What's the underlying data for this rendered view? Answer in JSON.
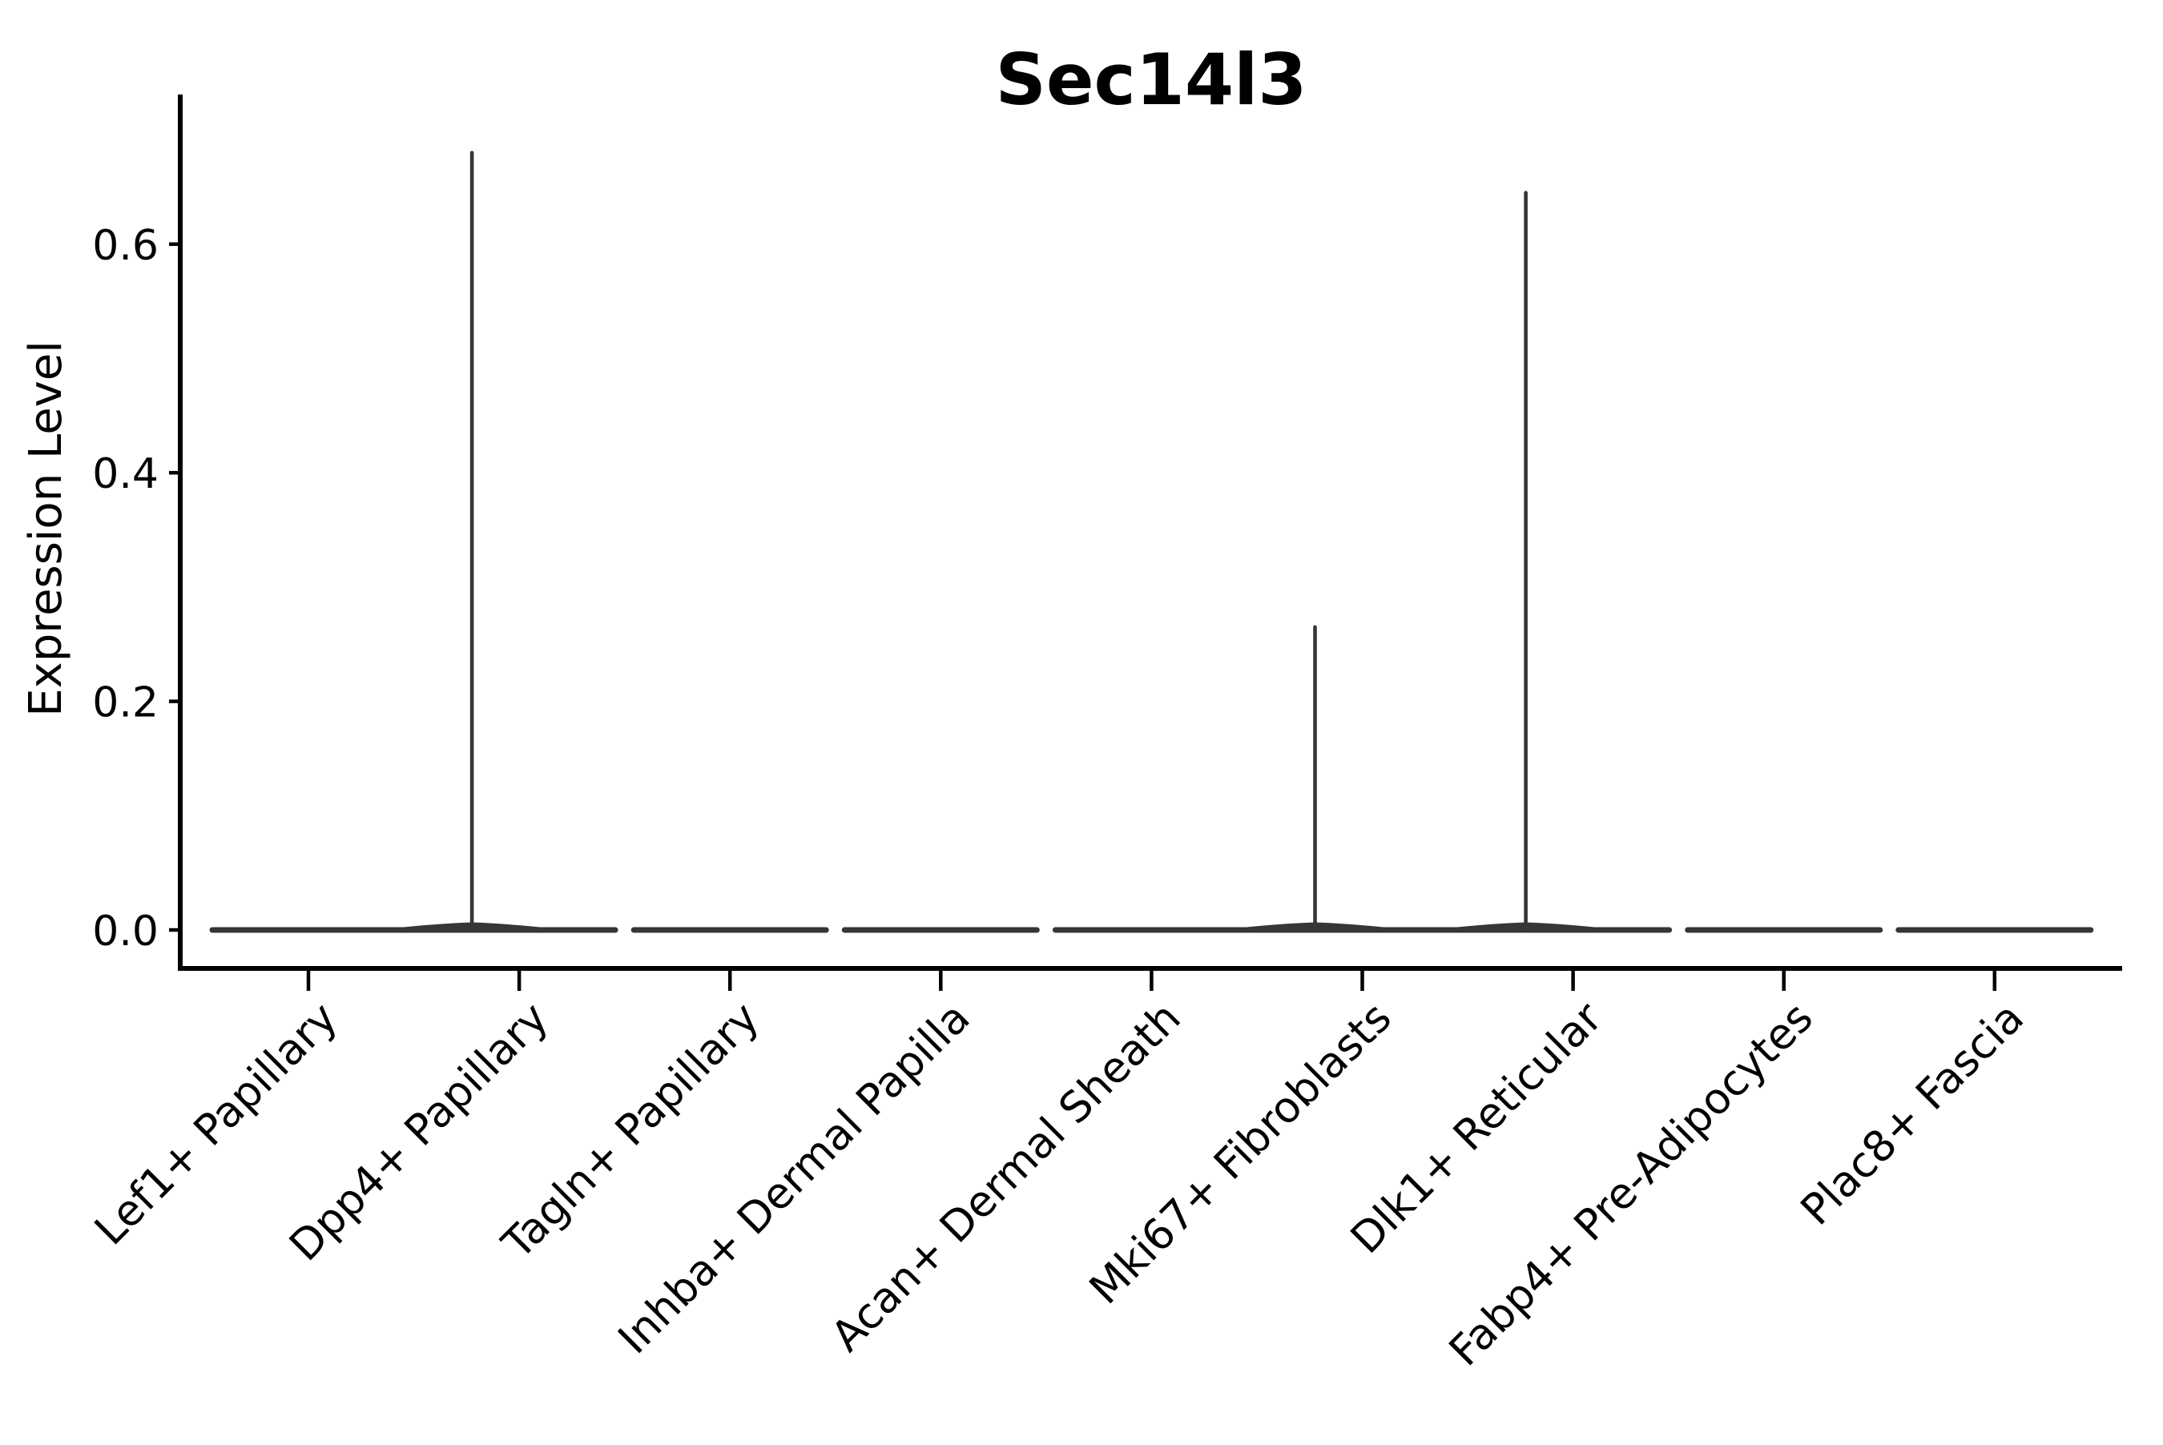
{
  "figure": {
    "title": "Sec14l3",
    "background": "#ffffff"
  },
  "axes": {
    "ylabel": "Expression Level",
    "xlabel": "",
    "y_ticks": [
      {
        "label": "0.0",
        "value": 0.0
      },
      {
        "label": "0.2",
        "value": 0.2
      },
      {
        "label": "0.4",
        "value": 0.4
      },
      {
        "label": "0.6",
        "value": 0.6
      }
    ],
    "ylim": [
      -0.034,
      0.73
    ],
    "grid": false
  },
  "chart_data": {
    "type": "violin",
    "title": "Sec14l3",
    "xlabel": "",
    "ylabel": "Expression Level",
    "categories": [
      "Lef1+ Papillary",
      "Dpp4+ Papillary",
      "Tagln+ Papillary",
      "Inhba+ Dermal Papilla",
      "Acan+ Dermal Sheath",
      "Mki67+ Fibroblasts",
      "Dlk1+ Reticular",
      "Fabp4+ Pre-Adipocytes",
      "Plac8+ Fascia"
    ],
    "series": [
      {
        "name": "Lef1+ Papillary",
        "median": 0,
        "max": 0
      },
      {
        "name": "Dpp4+ Papillary",
        "median": 0,
        "max": 0.68
      },
      {
        "name": "Tagln+ Papillary",
        "median": 0,
        "max": 0
      },
      {
        "name": "Inhba+ Dermal Papilla",
        "median": 0,
        "max": 0
      },
      {
        "name": "Acan+ Dermal Sheath",
        "median": 0,
        "max": 0
      },
      {
        "name": "Mki67+ Fibroblasts",
        "median": 0,
        "max": 0.265
      },
      {
        "name": "Dlk1+ Reticular",
        "median": 0,
        "max": 0.645
      },
      {
        "name": "Fabp4+ Pre-Adipocytes",
        "median": 0,
        "max": 0
      },
      {
        "name": "Plac8+ Fascia",
        "median": 0,
        "max": 0
      }
    ],
    "y_tick_labels": [
      "0.0",
      "0.2",
      "0.4",
      "0.6"
    ],
    "ylim": [
      -0.034,
      0.73
    ],
    "grid": false,
    "legend": "none",
    "note": "Nearly all expression values are 0 in every cluster; flat violins at 0 with thin density spikes up to the max value in Dpp4+ Papillary, Mki67+ Fibroblasts and Dlk1+ Reticular."
  },
  "colors": {
    "violin": "#363636",
    "axis": "#000000",
    "text": "#000000",
    "background": "#ffffff"
  }
}
